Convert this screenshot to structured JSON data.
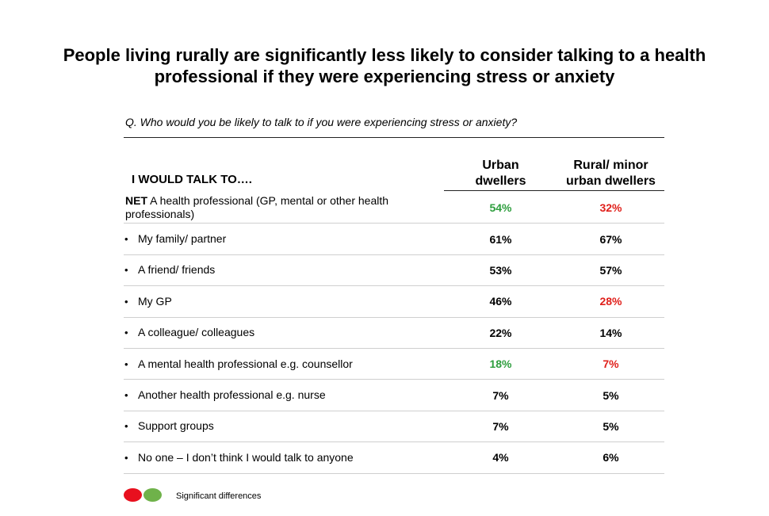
{
  "title": "People living rurally are significantly less likely to consider talking to a health professional if they were experiencing stress or anxiety",
  "question": "Q. Who would you be likely to talk to if you were experiencing stress or anxiety?",
  "colors": {
    "significant_higher": "#2e9e3e",
    "significant_lower": "#e0201b",
    "default": "#000000",
    "legend_green": "#6fb24a",
    "legend_red": "#e8101e"
  },
  "chart_data": {
    "type": "table",
    "row_header": "I WOULD TALK TO….",
    "columns": [
      "Urban dwellers",
      "Rural/ minor urban dwellers"
    ],
    "column_lines": [
      [
        "Urban",
        "dwellers"
      ],
      [
        "Rural/ minor",
        "urban dwellers"
      ]
    ],
    "rows": [
      {
        "prefix": "NET",
        "label": " A health professional (GP, mental or other health professionals)",
        "bullet": "",
        "urban": "54%",
        "rural": "32%",
        "urban_sig": "higher",
        "rural_sig": "lower"
      },
      {
        "prefix": "",
        "label": "My family/ partner",
        "bullet": "•",
        "urban": "61%",
        "rural": "67%",
        "urban_sig": "",
        "rural_sig": ""
      },
      {
        "prefix": "",
        "label": "A friend/ friends",
        "bullet": "•",
        "urban": "53%",
        "rural": "57%",
        "urban_sig": "",
        "rural_sig": ""
      },
      {
        "prefix": "",
        "label": "My GP",
        "bullet": "•",
        "urban": "46%",
        "rural": "28%",
        "urban_sig": "",
        "rural_sig": "lower"
      },
      {
        "prefix": "",
        "label": "A colleague/ colleagues",
        "bullet": "•",
        "urban": "22%",
        "rural": "14%",
        "urban_sig": "",
        "rural_sig": ""
      },
      {
        "prefix": "",
        "label": "A mental health professional e.g. counsellor",
        "bullet": "•",
        "urban": "18%",
        "rural": "7%",
        "urban_sig": "higher",
        "rural_sig": "lower"
      },
      {
        "prefix": "",
        "label": "Another health professional e.g. nurse",
        "bullet": "•",
        "urban": "7%",
        "rural": "5%",
        "urban_sig": "",
        "rural_sig": ""
      },
      {
        "prefix": "",
        "label": "Support groups",
        "bullet": "•",
        "urban": "7%",
        "rural": "5%",
        "urban_sig": "",
        "rural_sig": ""
      },
      {
        "prefix": "",
        "label": "No one – I don’t think I would talk to anyone",
        "bullet": "•",
        "urban": "4%",
        "rural": "6%",
        "urban_sig": "",
        "rural_sig": ""
      }
    ],
    "legend": "Significant differences"
  }
}
